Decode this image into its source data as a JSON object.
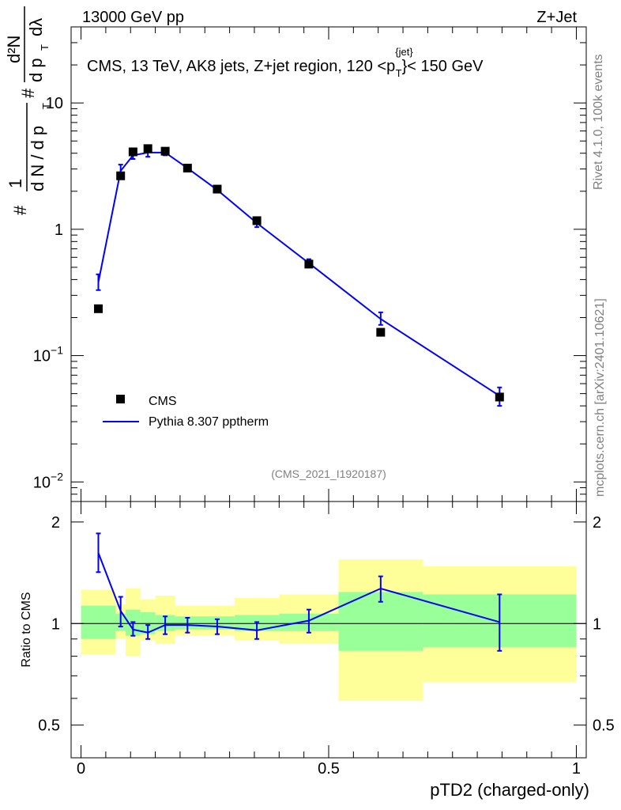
{
  "header": {
    "left": "13000 GeV pp",
    "right": "Z+Jet"
  },
  "side": {
    "top": "Rivet 4.1.0,  100k events",
    "bottom": "mcplots.cern.ch [arXiv:2401.10621]"
  },
  "chart_data": [
    {
      "type": "line",
      "panel": "main",
      "title": "CMS, 13 TeV, AK8 jets, Z+jet region, 120 <p_T^{jet}< 150 GeV",
      "title_parts": {
        "pre": "CMS, 13 TeV, AK8 jets, Z+jet region, 120 <p",
        "sup": "{jet}",
        "sub": "T",
        "post": "}< 150 GeV"
      },
      "ylabel": "1/(dN/dp_T) d²N/(dp_T dλ)",
      "ylabel_parts": {
        "hash1": "#",
        "one": "1",
        "dN": "d N / d p",
        "T": "T",
        "hash2": "#",
        "d2N": "d²N",
        "dp": "d p",
        "T2": "T",
        "dl": "dλ"
      },
      "yscale": "log",
      "ylim": [
        0.007,
        40
      ],
      "xlim": [
        -0.02,
        1.02
      ],
      "ytick_labels": [
        "10",
        "1",
        "10−1",
        "10−2"
      ],
      "ytick_values": [
        10,
        1,
        0.1,
        0.01
      ],
      "watermark": "(CMS_2021_I1920187)",
      "legend": {
        "position": "bottom-left",
        "entries": [
          "CMS",
          "Pythia 8.307 pptherm"
        ]
      },
      "series": [
        {
          "name": "CMS",
          "marker": "square",
          "color": "#000000",
          "x": [
            0.035,
            0.08,
            0.105,
            0.135,
            0.17,
            0.215,
            0.275,
            0.355,
            0.46,
            0.605,
            0.845
          ],
          "values": [
            0.235,
            2.65,
            4.1,
            4.35,
            4.15,
            3.05,
            2.08,
            1.17,
            0.53,
            0.153,
            0.047
          ]
        },
        {
          "name": "Pythia 8.307 pptherm",
          "marker": "line",
          "color": "#0000ff",
          "x": [
            0.035,
            0.08,
            0.105,
            0.135,
            0.17,
            0.215,
            0.275,
            0.355,
            0.46,
            0.605,
            0.845
          ],
          "values": [
            0.38,
            2.9,
            3.85,
            4.05,
            4.05,
            3.05,
            2.05,
            1.12,
            0.54,
            0.195,
            0.048
          ],
          "err_low": [
            0.33,
            2.6,
            3.6,
            3.75,
            3.85,
            2.9,
            1.95,
            1.04,
            0.5,
            0.175,
            0.04
          ],
          "err_high": [
            0.44,
            3.25,
            4.1,
            4.35,
            4.25,
            3.2,
            2.15,
            1.2,
            0.58,
            0.22,
            0.056
          ]
        }
      ]
    },
    {
      "type": "line",
      "panel": "ratio",
      "ylabel": "Ratio to CMS",
      "xlabel": "pTD2 (charged-only)",
      "yscale": "log",
      "ylim": [
        0.4,
        2.3
      ],
      "xlim": [
        -0.02,
        1.02
      ],
      "ytick_labels": [
        "2",
        "1",
        "0.5"
      ],
      "ytick_values": [
        2,
        1,
        0.5
      ],
      "xtick_labels": [
        "0",
        "0.5",
        "1"
      ],
      "xtick_values": [
        0,
        0.5,
        1
      ],
      "bands": {
        "bin_edges": [
          0.0,
          0.07,
          0.09,
          0.12,
          0.15,
          0.19,
          0.24,
          0.31,
          0.4,
          0.52,
          0.69,
          1.0
        ],
        "inner_low": [
          0.9,
          0.95,
          0.92,
          0.93,
          0.95,
          0.96,
          0.96,
          0.95,
          0.95,
          0.83,
          0.85
        ],
        "inner_high": [
          1.13,
          1.07,
          1.1,
          1.08,
          1.06,
          1.05,
          1.05,
          1.06,
          1.07,
          1.24,
          1.22
        ],
        "outer_low": [
          0.81,
          0.9,
          0.8,
          0.89,
          0.87,
          0.92,
          0.92,
          0.89,
          0.87,
          0.59,
          0.67
        ],
        "outer_high": [
          1.26,
          1.14,
          1.27,
          1.18,
          1.21,
          1.13,
          1.13,
          1.19,
          1.22,
          1.55,
          1.48
        ],
        "inner_color": "#99ff99",
        "outer_color": "#ffff99"
      },
      "series": [
        {
          "name": "Pythia 8.307 pptherm / CMS",
          "color": "#0000ff",
          "x": [
            0.035,
            0.08,
            0.105,
            0.135,
            0.17,
            0.215,
            0.275,
            0.355,
            0.46,
            0.605,
            0.845
          ],
          "values": [
            1.62,
            1.09,
            0.96,
            0.94,
            0.99,
            0.99,
            0.98,
            0.955,
            1.02,
            1.27,
            1.01
          ],
          "err_low": [
            1.42,
            0.98,
            0.92,
            0.9,
            0.93,
            0.94,
            0.93,
            0.9,
            0.94,
            1.16,
            0.83
          ],
          "err_high": [
            1.85,
            1.2,
            1.01,
            0.99,
            1.05,
            1.04,
            1.03,
            1.01,
            1.1,
            1.38,
            1.22
          ]
        }
      ]
    }
  ]
}
